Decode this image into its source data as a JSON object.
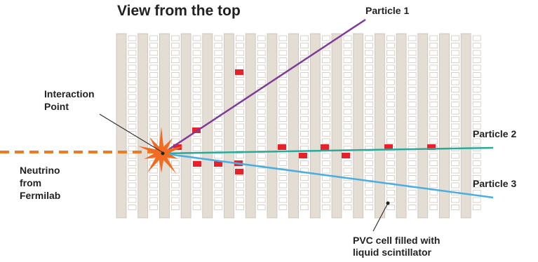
{
  "title": "View from the top",
  "labels": {
    "particle_1": "Particle 1",
    "particle_2": "Particle 2",
    "particle_3": "Particle 3",
    "interaction_line1": "Interaction",
    "interaction_line2": "Point",
    "neutrino_line1": "Neutrino",
    "neutrino_line2": "from",
    "neutrino_line3": "Fermilab",
    "pvc_line1": "PVC cell filled with",
    "pvc_line2": "liquid scintillator"
  },
  "colors": {
    "background": "#ffffff",
    "detector_fill": "#e4ddd4",
    "detector_stroke": "#c9c0b5",
    "cell_fill": "#ffffff",
    "hit": "#e8202a",
    "particle_1": "#7d3c98",
    "particle_2": "#2aa89a",
    "particle_3": "#4aaee0",
    "neutrino_beam": "#f07a22",
    "burst": "#f26b23",
    "text": "#222222"
  },
  "icons": {
    "interaction": "burst-star-icon"
  }
}
